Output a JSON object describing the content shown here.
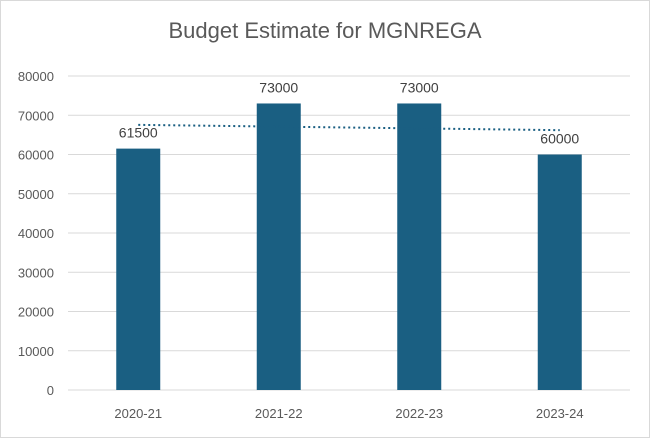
{
  "chart_data": {
    "type": "bar",
    "title": "Budget Estimate for MGNREGA",
    "categories": [
      "2020-21",
      "2021-22",
      "2022-23",
      "2023-24"
    ],
    "values": [
      61500,
      73000,
      73000,
      60000
    ],
    "data_labels": [
      "61500",
      "73000",
      "73000",
      "60000"
    ],
    "xlabel": "",
    "ylabel": "",
    "ylim": [
      0,
      80000
    ],
    "yticks": [
      0,
      10000,
      20000,
      30000,
      40000,
      50000,
      60000,
      70000,
      80000
    ],
    "ytick_labels": [
      "0",
      "10000",
      "20000",
      "30000",
      "40000",
      "50000",
      "60000",
      "70000",
      "80000"
    ],
    "grid": true,
    "legend": "none",
    "trendline": "linear, dotted",
    "bar_color": "#1a5f82",
    "trendline_color": "#1a5f82",
    "gridline_color": "#d9d9d9",
    "text_color": "#595959"
  }
}
